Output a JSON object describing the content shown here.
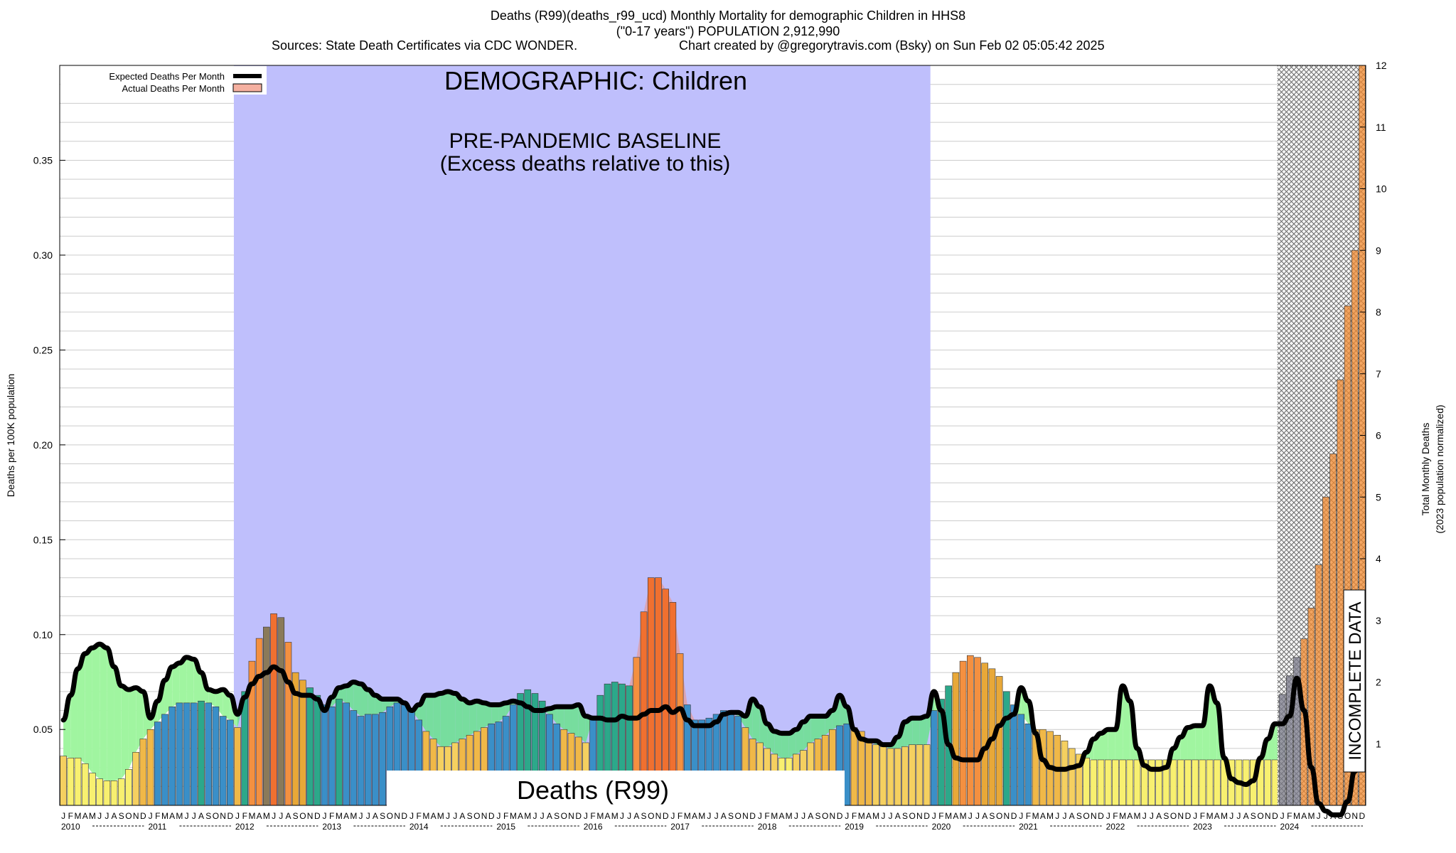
{
  "header": {
    "title": "Deaths (R99)(deaths_r99_ucd) Monthly Mortality for demographic Children in HHS8",
    "subtitle": "(\"0-17 years\") POPULATION 2,912,990",
    "sources": "Sources: State Death Certificates via CDC WONDER.",
    "credit": "Chart created by @gregorytravis.com (Bsky) on Sun Feb 02 05:05:42 2025"
  },
  "chart_data": {
    "type": "bar",
    "title": "DEMOGRAPHIC: Children",
    "baseline_label_1": "PRE-PANDEMIC BASELINE",
    "baseline_label_2": "(Excess deaths relative to this)",
    "cause_label": "Deaths (R99)",
    "incomplete_label": "INCOMPLETE DATA",
    "ylabel_left": "Deaths per 100K population",
    "ylabel_right_1": "Total Monthly Deaths",
    "ylabel_right_2": "(2023 population normalized)",
    "legend": {
      "expected": "Expected Deaths Per Month",
      "actual": "Actual Deaths Per Month",
      "placement": "top-left"
    },
    "ylim_left": [
      0.01,
      0.4
    ],
    "yticks_left": [
      "0.05",
      "0.10",
      "0.15",
      "0.20",
      "0.25",
      "0.30",
      "0.35"
    ],
    "ylim_right": [
      0,
      12
    ],
    "yticks_right": [
      "1",
      "2",
      "3",
      "4",
      "5",
      "6",
      "7",
      "8",
      "9",
      "10",
      "11",
      "12"
    ],
    "month_letters": [
      "J",
      "F",
      "M",
      "A",
      "M",
      "J",
      "J",
      "A",
      "S",
      "O",
      "N",
      "D"
    ],
    "years": [
      "2010",
      "2011",
      "2012",
      "2013",
      "2014",
      "2015",
      "2016",
      "2017",
      "2018",
      "2019",
      "2020",
      "2021",
      "2022",
      "2023",
      "2024"
    ],
    "baseline_period": [
      "2012-01",
      "2019-12"
    ],
    "incomplete_period": [
      "2024-02",
      "2024-12"
    ],
    "grid": true,
    "colors": {
      "baseline_fill": "#bfbffc",
      "expected_line": "#000000",
      "excess_fill": "#a0f5a0",
      "baseline_excess_fill": "#77dd9e",
      "actual_swatch": "#f5b0a0",
      "spike_area": "#f0907c"
    },
    "actual_rate": [
      0.036,
      0.035,
      0.035,
      0.032,
      0.027,
      0.024,
      0.023,
      0.023,
      0.024,
      0.029,
      0.038,
      0.045,
      0.05,
      0.054,
      0.058,
      0.062,
      0.064,
      0.064,
      0.064,
      0.065,
      0.064,
      0.062,
      0.057,
      0.055,
      0.051,
      0.07,
      0.086,
      0.098,
      0.104,
      0.111,
      0.109,
      0.096,
      0.08,
      0.076,
      0.072,
      0.068,
      0.063,
      0.062,
      0.066,
      0.064,
      0.06,
      0.057,
      0.058,
      0.058,
      0.059,
      0.062,
      0.064,
      0.063,
      0.061,
      0.055,
      0.049,
      0.045,
      0.041,
      0.041,
      0.043,
      0.045,
      0.047,
      0.049,
      0.051,
      0.053,
      0.054,
      0.057,
      0.063,
      0.069,
      0.071,
      0.069,
      0.065,
      0.058,
      0.053,
      0.05,
      0.048,
      0.046,
      0.043,
      0.056,
      0.068,
      0.074,
      0.075,
      0.074,
      0.073,
      0.088,
      0.112,
      0.13,
      0.13,
      0.124,
      0.117,
      0.09,
      0.063,
      0.055,
      0.055,
      0.056,
      0.058,
      0.06,
      0.059,
      0.057,
      0.051,
      0.045,
      0.043,
      0.04,
      0.037,
      0.035,
      0.035,
      0.037,
      0.039,
      0.043,
      0.045,
      0.047,
      0.05,
      0.052,
      0.053,
      0.051,
      0.049,
      0.045,
      0.042,
      0.041,
      0.04,
      0.04,
      0.041,
      0.042,
      0.042,
      0.042,
      0.06,
      0.066,
      0.073,
      0.08,
      0.086,
      0.089,
      0.088,
      0.085,
      0.082,
      0.078,
      0.07,
      0.063,
      0.058,
      0.053,
      0.05,
      0.05,
      0.049,
      0.047,
      0.044,
      0.04,
      0.037,
      0.035,
      0.034,
      0.034,
      0.034,
      0.034,
      0.034,
      0.034,
      0.034,
      0.034,
      0.034,
      0.034,
      0.034,
      0.034,
      0.034,
      0.034,
      0.034,
      0.034,
      0.034,
      0.034,
      0.034,
      0.034,
      0.034,
      0.034,
      0.034,
      0.034,
      0.034,
      0.034,
      0.034,
      0.035,
      0.036,
      0.038,
      0.041,
      0.043,
      0.045,
      0.047,
      0.049,
      0.051,
      0.057,
      0.063
    ],
    "expected_rate": [
      0.055,
      0.068,
      0.082,
      0.09,
      0.093,
      0.095,
      0.093,
      0.083,
      0.073,
      0.071,
      0.072,
      0.07,
      0.056,
      0.065,
      0.076,
      0.083,
      0.085,
      0.088,
      0.087,
      0.08,
      0.071,
      0.07,
      0.071,
      0.068,
      0.058,
      0.067,
      0.074,
      0.078,
      0.08,
      0.083,
      0.081,
      0.075,
      0.069,
      0.068,
      0.068,
      0.066,
      0.06,
      0.067,
      0.072,
      0.073,
      0.075,
      0.074,
      0.071,
      0.068,
      0.066,
      0.066,
      0.066,
      0.064,
      0.06,
      0.063,
      0.068,
      0.068,
      0.069,
      0.07,
      0.069,
      0.066,
      0.064,
      0.065,
      0.064,
      0.063,
      0.063,
      0.064,
      0.065,
      0.064,
      0.062,
      0.06,
      0.06,
      0.061,
      0.062,
      0.062,
      0.062,
      0.063,
      0.057,
      0.056,
      0.056,
      0.055,
      0.055,
      0.057,
      0.056,
      0.056,
      0.058,
      0.06,
      0.06,
      0.062,
      0.059,
      0.061,
      0.055,
      0.052,
      0.052,
      0.052,
      0.054,
      0.058,
      0.059,
      0.059,
      0.057,
      0.066,
      0.062,
      0.053,
      0.049,
      0.048,
      0.048,
      0.05,
      0.054,
      0.057,
      0.057,
      0.057,
      0.06,
      0.068,
      0.062,
      0.05,
      0.045,
      0.044,
      0.044,
      0.042,
      0.042,
      0.046,
      0.054,
      0.056,
      0.056,
      0.057,
      0.07,
      0.06,
      0.042,
      0.035,
      0.034,
      0.034,
      0.034,
      0.04,
      0.045,
      0.052,
      0.056,
      0.058,
      0.072,
      0.065,
      0.048,
      0.034,
      0.03,
      0.029,
      0.029,
      0.03,
      0.031,
      0.038,
      0.045,
      0.048,
      0.05,
      0.05,
      0.073,
      0.065,
      0.04,
      0.031,
      0.029,
      0.029,
      0.03,
      0.04,
      0.046,
      0.051,
      0.052,
      0.052,
      0.073,
      0.064,
      0.035,
      0.024,
      0.022,
      0.021,
      0.023,
      0.035,
      0.045,
      0.053,
      0.053,
      0.057,
      0.077,
      0.06,
      0.03,
      0.011,
      0.007,
      0.005,
      0.005,
      0.012,
      0.028,
      0.04
    ],
    "incomplete_total_deaths": [
      1.8,
      2.1,
      2.4,
      2.7,
      3.2,
      3.9,
      5.0,
      5.7,
      6.9,
      8.1,
      9.0,
      12.0
    ]
  }
}
